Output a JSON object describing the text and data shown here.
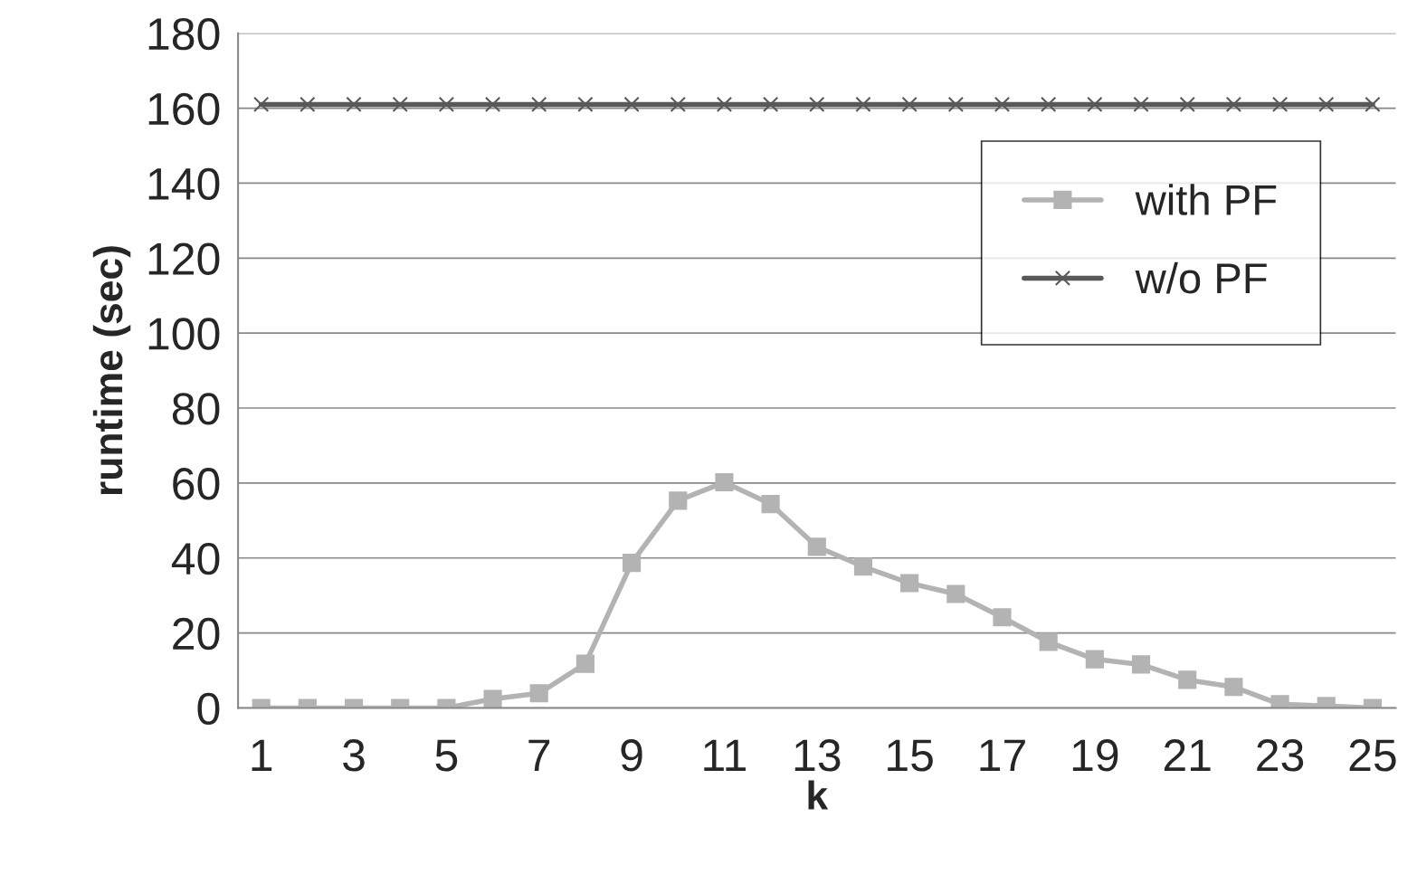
{
  "chart_data": {
    "type": "line",
    "xlabel": "k",
    "ylabel": "runtime (sec)",
    "categories": [
      "1",
      null,
      "3",
      null,
      "5",
      null,
      "7",
      null,
      "9",
      null,
      "11",
      null,
      "13",
      null,
      "15",
      null,
      "17",
      null,
      "19",
      null,
      "21",
      null,
      "23",
      null,
      "25"
    ],
    "series": [
      {
        "name": "with PF",
        "color": "#b3b3b3",
        "marker": "square",
        "values": [
          0,
          0,
          0,
          0,
          0,
          2.4,
          3.9,
          11.8,
          38.7,
          55.3,
          60.2,
          54.4,
          43,
          37.7,
          33.3,
          30.4,
          24.2,
          17.6,
          13,
          11.6,
          7.5,
          5.6,
          1,
          0.5,
          0
        ]
      },
      {
        "name": "w/o PF",
        "color": "#595959",
        "marker": "cross",
        "values": [
          161,
          161,
          161,
          161,
          161,
          161,
          161,
          161,
          161,
          161,
          161,
          161,
          161,
          161,
          161,
          161,
          161,
          161,
          161,
          161,
          161,
          161,
          161,
          161,
          161
        ]
      }
    ],
    "ylim": [
      0,
      180
    ],
    "yticks": [
      0,
      20,
      40,
      60,
      80,
      100,
      120,
      140,
      160,
      180
    ],
    "grid": "y",
    "legend": "top right",
    "line_style": "solid"
  }
}
